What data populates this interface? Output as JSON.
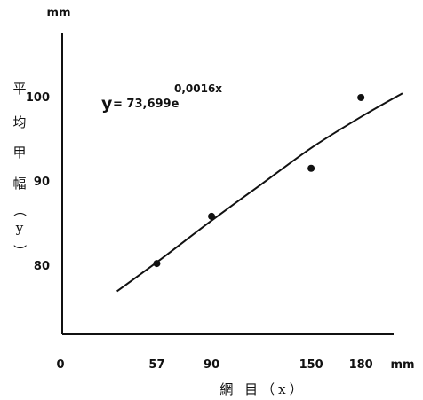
{
  "chart_data": {
    "type": "scatter",
    "title": "",
    "xlabel": "網 目（x）",
    "ylabel": [
      "平",
      "均",
      "甲",
      "幅",
      "（",
      "y",
      "）"
    ],
    "x_unit": "mm",
    "y_unit": "mm",
    "xlim": [
      0,
      200
    ],
    "ylim": [
      73,
      108
    ],
    "x_origin_label": "0",
    "x_ticks": [
      57,
      90,
      150,
      180
    ],
    "x_tick_labels": [
      "57",
      "90",
      "150",
      "180"
    ],
    "y_ticks": [
      80,
      90,
      100
    ],
    "y_tick_labels": [
      "80",
      "90",
      "100"
    ],
    "grid": false,
    "legend": "none",
    "points": [
      {
        "x": 57,
        "y": 80.2
      },
      {
        "x": 90,
        "y": 85.8
      },
      {
        "x": 150,
        "y": 91.5
      },
      {
        "x": 180,
        "y": 99.9
      }
    ],
    "fit_line": {
      "equation_prefix": "y",
      "equation_body": "= 73,699e",
      "equation_exponent": "0,0016x",
      "x": [
        33,
        60,
        90,
        120,
        150,
        180,
        205
      ],
      "y": [
        76.9,
        80.8,
        85.3,
        89.6,
        93.9,
        97.6,
        100.4
      ]
    }
  }
}
